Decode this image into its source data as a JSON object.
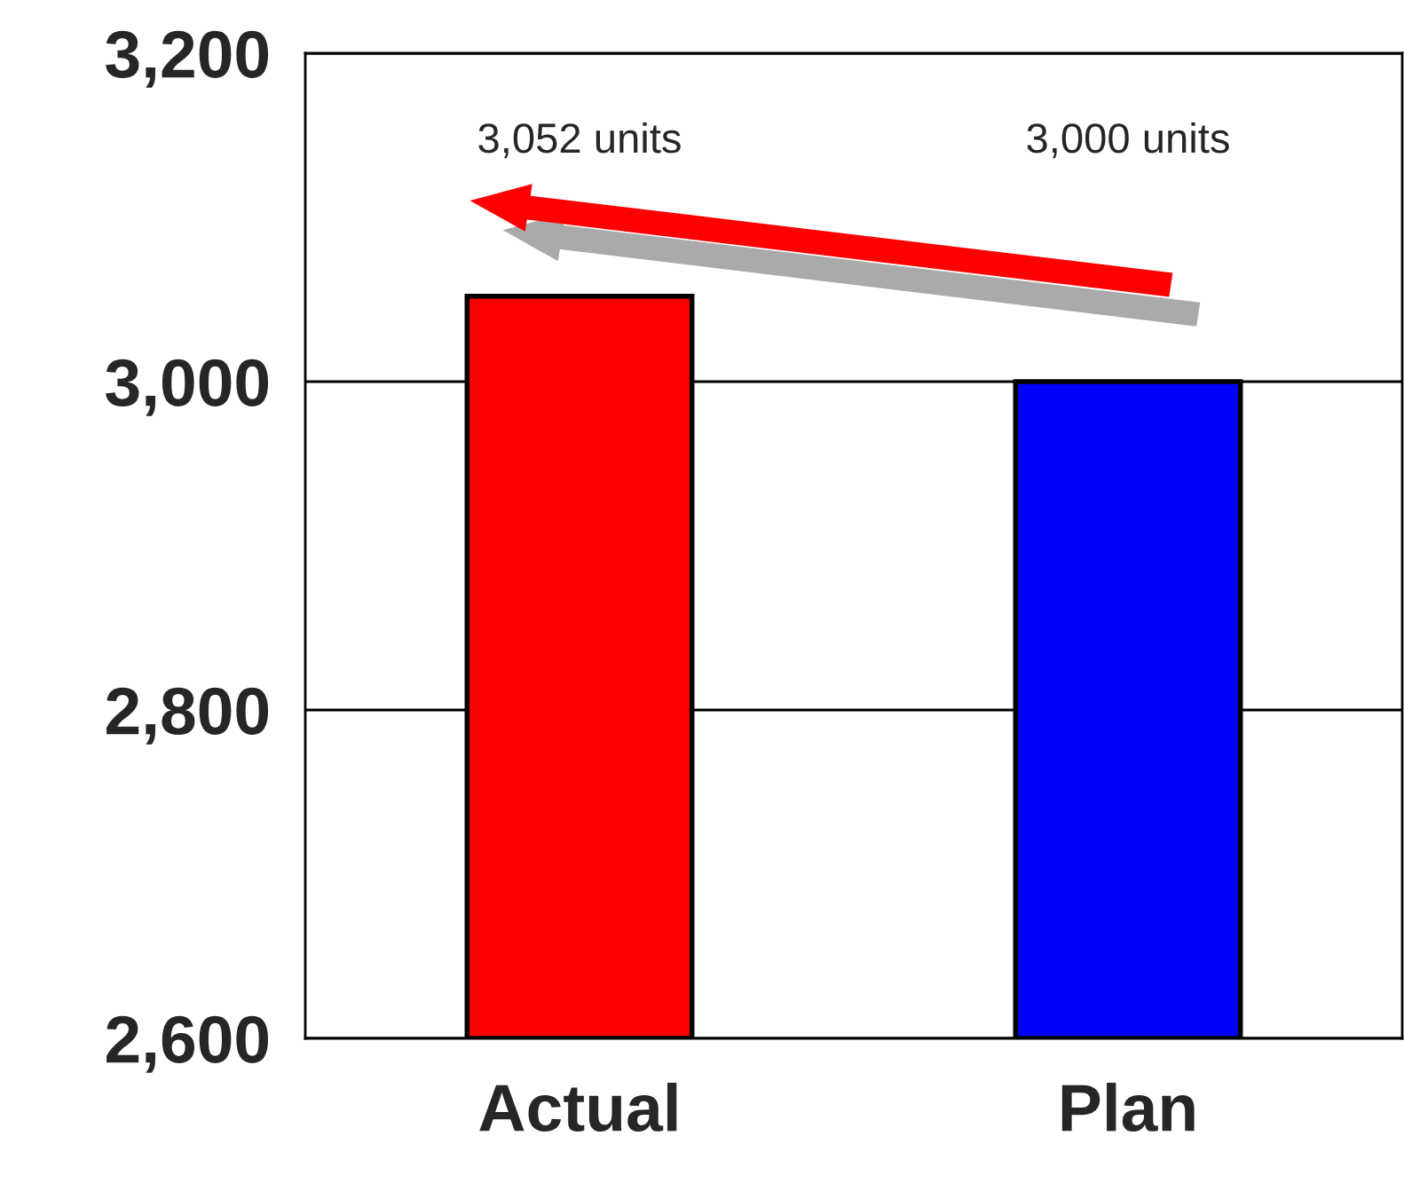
{
  "chart_data": {
    "type": "bar",
    "categories": [
      "Actual",
      "Plan"
    ],
    "values": [
      3052,
      3000
    ],
    "colors": [
      "#ff0000",
      "#0000ff"
    ],
    "annotations": [
      "3,052 units",
      "3,000 units"
    ],
    "ylim": [
      2600,
      3200
    ],
    "yticks": [
      {
        "value": 2600,
        "label": "2,600"
      },
      {
        "value": 2800,
        "label": "2,800"
      },
      {
        "value": 3000,
        "label": "3,000"
      },
      {
        "value": 3200,
        "label": "3,200"
      }
    ],
    "grid": "y",
    "legend": false
  }
}
